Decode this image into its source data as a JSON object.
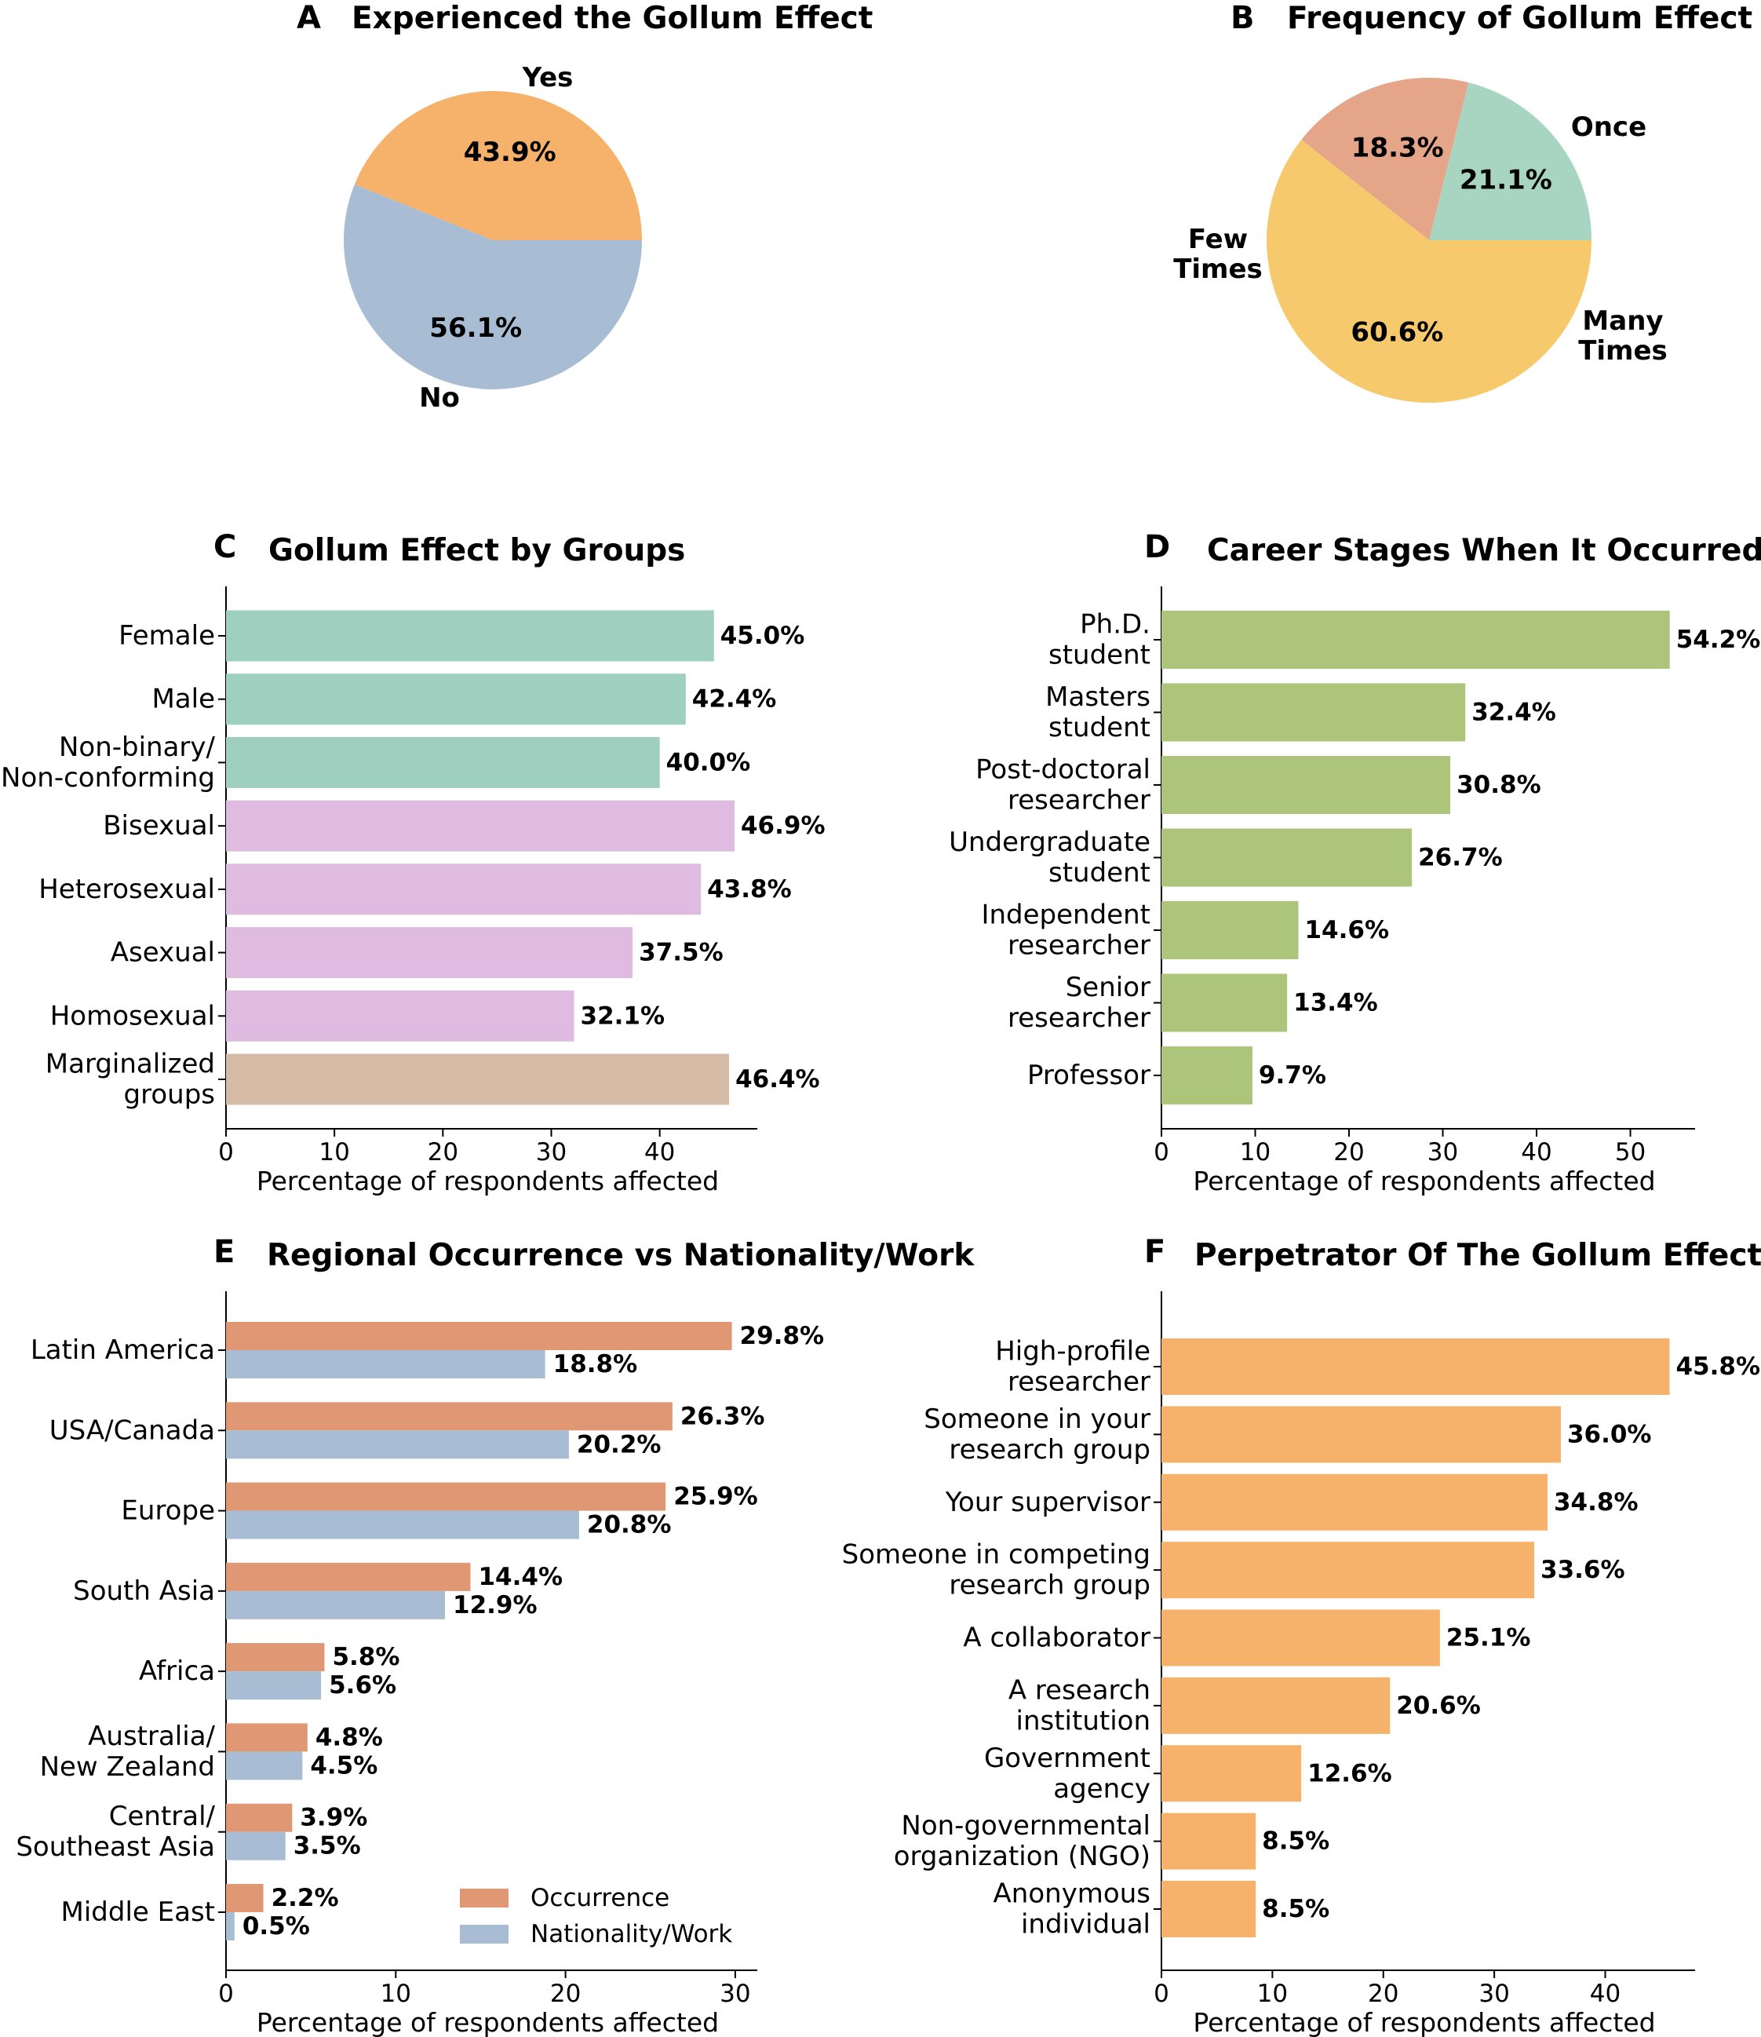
{
  "chart_data": [
    {
      "id": "A",
      "type": "pie",
      "panel_letter": "A",
      "title": "Experienced the Gollum Effect",
      "slices": [
        {
          "label": "Yes",
          "value": 43.9,
          "pct_label": "43.9%",
          "color": "#f6b26b"
        },
        {
          "label": "No",
          "value": 56.1,
          "pct_label": "56.1%",
          "color": "#a8bdd4"
        }
      ]
    },
    {
      "id": "B",
      "type": "pie",
      "panel_letter": "B",
      "title": "Frequency of Gollum Effect",
      "slices": [
        {
          "label": "Once",
          "value": 21.1,
          "pct_label": "21.1%",
          "color": "#a8d5c1"
        },
        {
          "label": "Many Times",
          "value": 18.3,
          "pct_label": "18.3%",
          "color": "#e5a588"
        },
        {
          "label": "Few Times",
          "value": 60.6,
          "pct_label": "60.6%",
          "color": "#f7c96d"
        }
      ]
    },
    {
      "id": "C",
      "type": "bar",
      "orientation": "horizontal",
      "panel_letter": "C",
      "title": "Gollum Effect by Groups",
      "xlabel": "Percentage of respondents affected",
      "xlim": [
        0,
        49
      ],
      "xticks": [
        0,
        10,
        20,
        30,
        40
      ],
      "categories": [
        "Female",
        "Male",
        "Non-binary/ Non-conforming",
        "Bisexual",
        "Heterosexual",
        "Asexual",
        "Homosexual",
        "Marginalized groups"
      ],
      "values": [
        45.0,
        42.4,
        40.0,
        46.9,
        43.8,
        37.5,
        32.1,
        46.4
      ],
      "value_labels": [
        "45.0%",
        "42.4%",
        "40.0%",
        "46.9%",
        "43.8%",
        "37.5%",
        "32.1%",
        "46.4%"
      ],
      "colors": [
        "#9ecfbf",
        "#9ecfbf",
        "#9ecfbf",
        "#dfbbe2",
        "#dfbbe2",
        "#dfbbe2",
        "#dfbbe2",
        "#d6bba6"
      ]
    },
    {
      "id": "D",
      "type": "bar",
      "orientation": "horizontal",
      "panel_letter": "D",
      "title": "Career Stages When It Occurred",
      "xlabel": "Percentage of respondents affected",
      "xlim": [
        0,
        56.9
      ],
      "xticks": [
        0,
        10,
        20,
        30,
        40,
        50
      ],
      "categories": [
        "Ph.D. student",
        "Masters student",
        "Post-doctoral researcher",
        "Undergraduate student",
        "Independent researcher",
        "Senior researcher",
        "Professor"
      ],
      "values": [
        54.2,
        32.4,
        30.8,
        26.7,
        14.6,
        13.4,
        9.7
      ],
      "value_labels": [
        "54.2%",
        "32.4%",
        "30.8%",
        "26.7%",
        "14.6%",
        "13.4%",
        "9.7%"
      ],
      "colors": [
        "#adc47b",
        "#adc47b",
        "#adc47b",
        "#adc47b",
        "#adc47b",
        "#adc47b",
        "#adc47b"
      ]
    },
    {
      "id": "E",
      "type": "bar",
      "orientation": "horizontal",
      "grouped": true,
      "panel_letter": "E",
      "title": "Regional Occurrence vs Nationality/Work",
      "xlabel": "Percentage of respondents affected",
      "xlim": [
        0,
        31.3
      ],
      "xticks": [
        0,
        10,
        20,
        30
      ],
      "legend": "bottom-right",
      "categories": [
        "Latin America",
        "USA/Canada",
        "Europe",
        "South Asia",
        "Africa",
        "Australia/ New Zealand",
        "Central/ Southeast Asia",
        "Middle East"
      ],
      "series": [
        {
          "name": "Occurrence",
          "color": "#df9873",
          "values": [
            29.8,
            26.3,
            25.9,
            14.4,
            5.8,
            4.8,
            3.9,
            2.2
          ],
          "value_labels": [
            "29.8%",
            "26.3%",
            "25.9%",
            "14.4%",
            "5.8%",
            "4.8%",
            "3.9%",
            "2.2%"
          ]
        },
        {
          "name": "Nationality/Work",
          "color": "#a8bdd4",
          "values": [
            18.8,
            20.2,
            20.8,
            12.9,
            5.6,
            4.5,
            3.5,
            0.5
          ],
          "value_labels": [
            "18.8%",
            "20.2%",
            "20.8%",
            "12.9%",
            "5.6%",
            "4.5%",
            "3.5%",
            "0.5%"
          ]
        }
      ]
    },
    {
      "id": "F",
      "type": "bar",
      "orientation": "horizontal",
      "panel_letter": "F",
      "title": "Perpetrator Of The Gollum Effect",
      "xlabel": "Percentage of respondents affected",
      "xlim": [
        0,
        48.1
      ],
      "xticks": [
        0,
        10,
        20,
        30,
        40
      ],
      "categories": [
        "High-profile researcher",
        "Someone in your research group",
        "Your supervisor",
        "Someone in competing research group",
        "A collaborator",
        "A research institution",
        "Government agency",
        "Non-governmental organization (NGO)",
        "Anonymous individual"
      ],
      "values": [
        45.8,
        36.0,
        34.8,
        33.6,
        25.1,
        20.6,
        12.6,
        8.5,
        8.5
      ],
      "value_labels": [
        "45.8%",
        "36.0%",
        "34.8%",
        "33.6%",
        "25.1%",
        "20.6%",
        "12.6%",
        "8.5%",
        "8.5%"
      ],
      "colors": [
        "#f6b26b",
        "#f6b26b",
        "#f6b26b",
        "#f6b26b",
        "#f6b26b",
        "#f6b26b",
        "#f6b26b",
        "#f6b26b",
        "#f6b26b"
      ]
    }
  ]
}
